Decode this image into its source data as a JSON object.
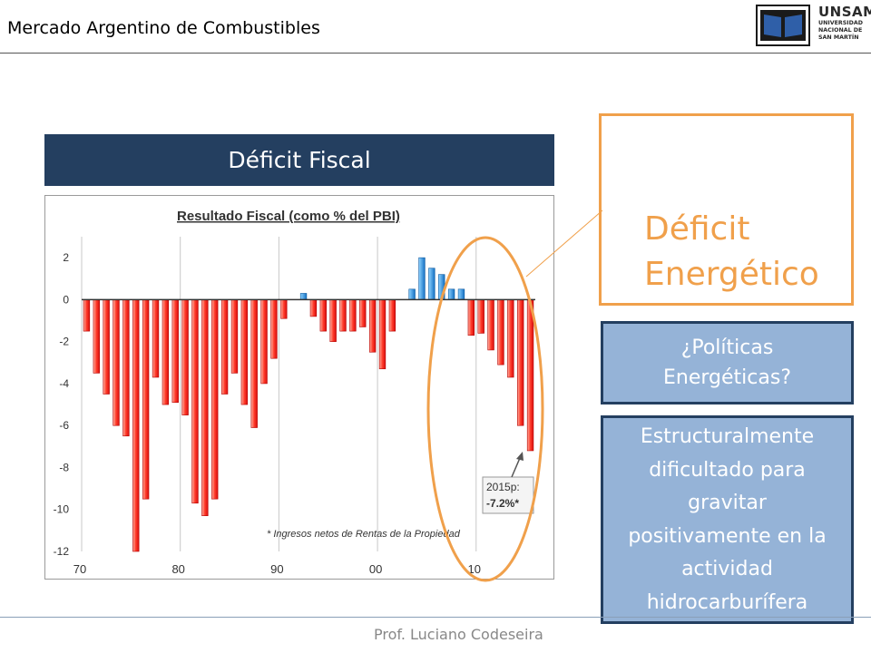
{
  "header": {
    "title": "Mercado Argentino de Combustibles"
  },
  "logo": {
    "name": "UNSAM",
    "lines": [
      "UNIVERSIDAD",
      "NACIONAL DE",
      "SAN MARTÍN"
    ]
  },
  "section": {
    "title": "Déficit Fiscal"
  },
  "callouts": {
    "energy_deficit": [
      "Déficit",
      "Energético"
    ],
    "policies": [
      "¿Políticas",
      "Energéticas?"
    ],
    "structural": [
      "Estructuralmente",
      "dificultado para",
      "gravitar",
      "positivamente en la",
      "actividad",
      "hidrocarburífera"
    ]
  },
  "footer": {
    "author": "Prof. Luciano Codeseira"
  },
  "colors": {
    "banner": "#243f60",
    "accent_orange": "#f0a04b",
    "box_fill": "#95b3d7",
    "negative_bar": "#ee1c1c",
    "positive_bar": "#1f8fd6"
  },
  "chart_data": {
    "type": "bar",
    "title": "Resultado Fiscal (como % del PBI)",
    "x": [
      1970,
      1971,
      1972,
      1973,
      1974,
      1975,
      1976,
      1977,
      1978,
      1979,
      1980,
      1981,
      1982,
      1983,
      1984,
      1985,
      1986,
      1987,
      1988,
      1989,
      1990,
      1991,
      1992,
      1993,
      1994,
      1995,
      1996,
      1997,
      1998,
      1999,
      2000,
      2001,
      2002,
      2003,
      2004,
      2005,
      2006,
      2007,
      2008,
      2009,
      2010,
      2011,
      2012,
      2013,
      2014,
      2015
    ],
    "values": [
      -1.5,
      -3.5,
      -4.5,
      -6.0,
      -6.5,
      -12.0,
      -9.5,
      -3.7,
      -5.0,
      -4.9,
      -5.5,
      -9.7,
      -10.3,
      -9.5,
      -4.5,
      -3.5,
      -5.0,
      -6.1,
      -4.0,
      -2.8,
      -0.9,
      0.0,
      0.3,
      -0.8,
      -1.5,
      -2.0,
      -1.5,
      -1.5,
      -1.3,
      -2.5,
      -3.3,
      -1.5,
      0.0,
      0.5,
      2.0,
      1.5,
      1.2,
      0.5,
      0.5,
      -1.7,
      -1.6,
      -2.4,
      -3.1,
      -3.7,
      -6.0,
      -7.2
    ],
    "x_tick_labels": [
      "70",
      "80",
      "90",
      "00",
      "10"
    ],
    "x_tick_years": [
      1970,
      1980,
      1990,
      2000,
      2010
    ],
    "y_ticks": [
      2,
      0,
      -2,
      -4,
      -6,
      -8,
      -10,
      -12
    ],
    "ylim": [
      -12,
      3
    ],
    "grid": "vertical",
    "annotation_label": [
      "2015p:",
      "-7.2%*"
    ],
    "footnote": "* Ingresos netos de Rentas de la Propiedad"
  }
}
